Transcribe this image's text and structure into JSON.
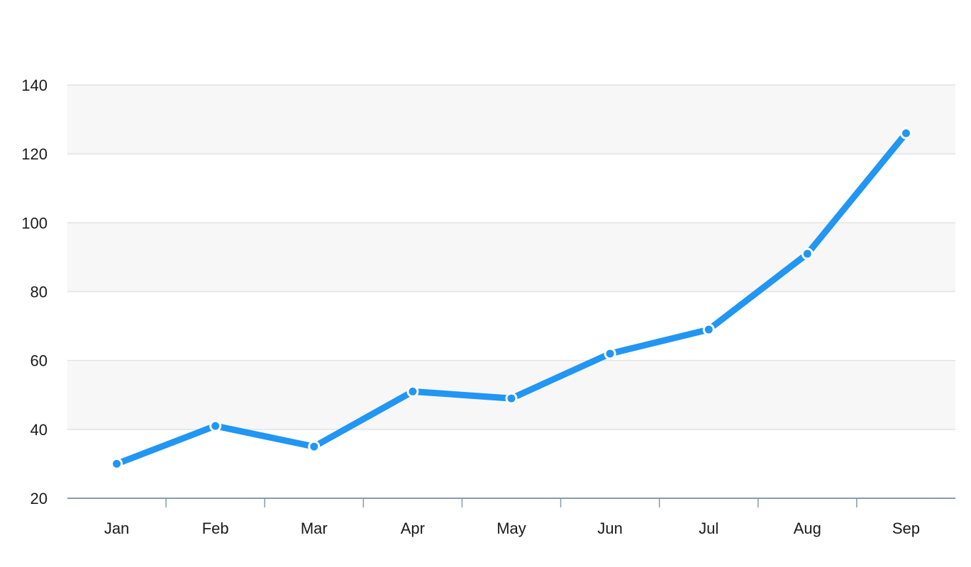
{
  "chart_data": {
    "type": "line",
    "title": "",
    "xlabel": "",
    "ylabel": "",
    "categories": [
      "Jan",
      "Feb",
      "Mar",
      "Apr",
      "May",
      "Jun",
      "Jul",
      "Aug",
      "Sep"
    ],
    "series": [
      {
        "values": [
          30,
          41,
          35,
          51,
          49,
          62,
          69,
          91,
          126
        ],
        "color": "#2196f3"
      }
    ],
    "ylim": [
      20,
      140
    ],
    "yticks": [
      20,
      40,
      60,
      80,
      100,
      120,
      140
    ],
    "grid": true,
    "alternating_bands": true,
    "legend": "none"
  }
}
